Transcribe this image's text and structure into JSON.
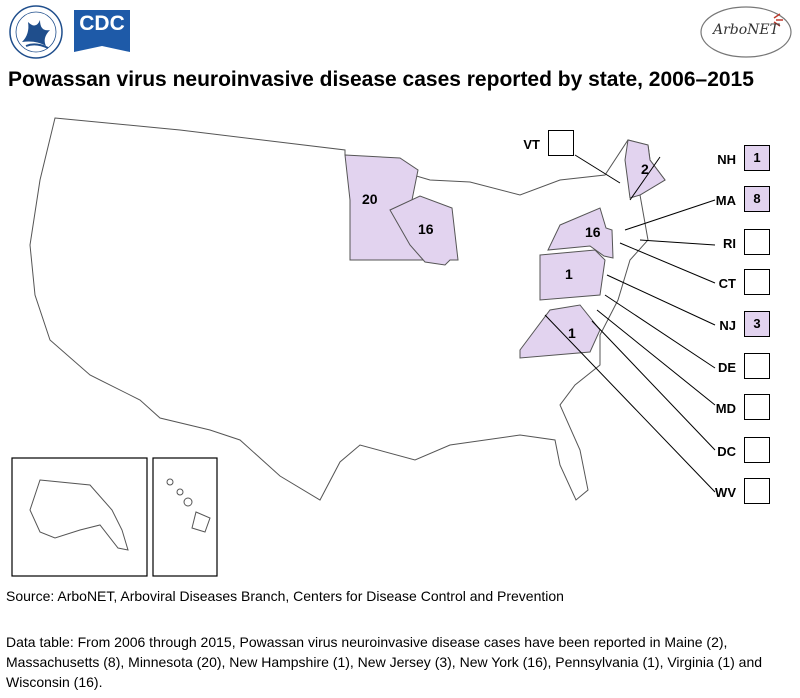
{
  "header": {
    "title": "Powassan virus neuroinvasive disease cases reported by state, 2006–2015",
    "cdc_logo_text": "CDC",
    "arbonet_logo_text": "ArboNET"
  },
  "colors": {
    "case_fill": "#e2d3ef",
    "no_case_fill": "#ffffff",
    "outline": "#000000"
  },
  "map": {
    "in_map_counts": {
      "ME": "2",
      "MN": "20",
      "WI": "16",
      "NY": "16",
      "PA": "1",
      "VA": "1"
    },
    "callouts": [
      {
        "abbr": "VT",
        "value": ""
      },
      {
        "abbr": "NH",
        "value": "1"
      },
      {
        "abbr": "MA",
        "value": "8"
      },
      {
        "abbr": "RI",
        "value": ""
      },
      {
        "abbr": "CT",
        "value": ""
      },
      {
        "abbr": "NJ",
        "value": "3"
      },
      {
        "abbr": "DE",
        "value": ""
      },
      {
        "abbr": "MD",
        "value": ""
      },
      {
        "abbr": "DC",
        "value": ""
      },
      {
        "abbr": "WV",
        "value": ""
      }
    ]
  },
  "footer": {
    "source": "Source: ArboNET, Arboviral Diseases Branch, Centers for Disease Control and Prevention",
    "data_table": "Data table: From 2006 through 2015, Powassan virus neuroinvasive disease cases have been reported in Maine (2), Massachusetts (8), Minnesota (20), New Hampshire (1), New Jersey (3), New York (16), Pennsylvania (1), Virginia (1) and Wisconsin (16)."
  }
}
